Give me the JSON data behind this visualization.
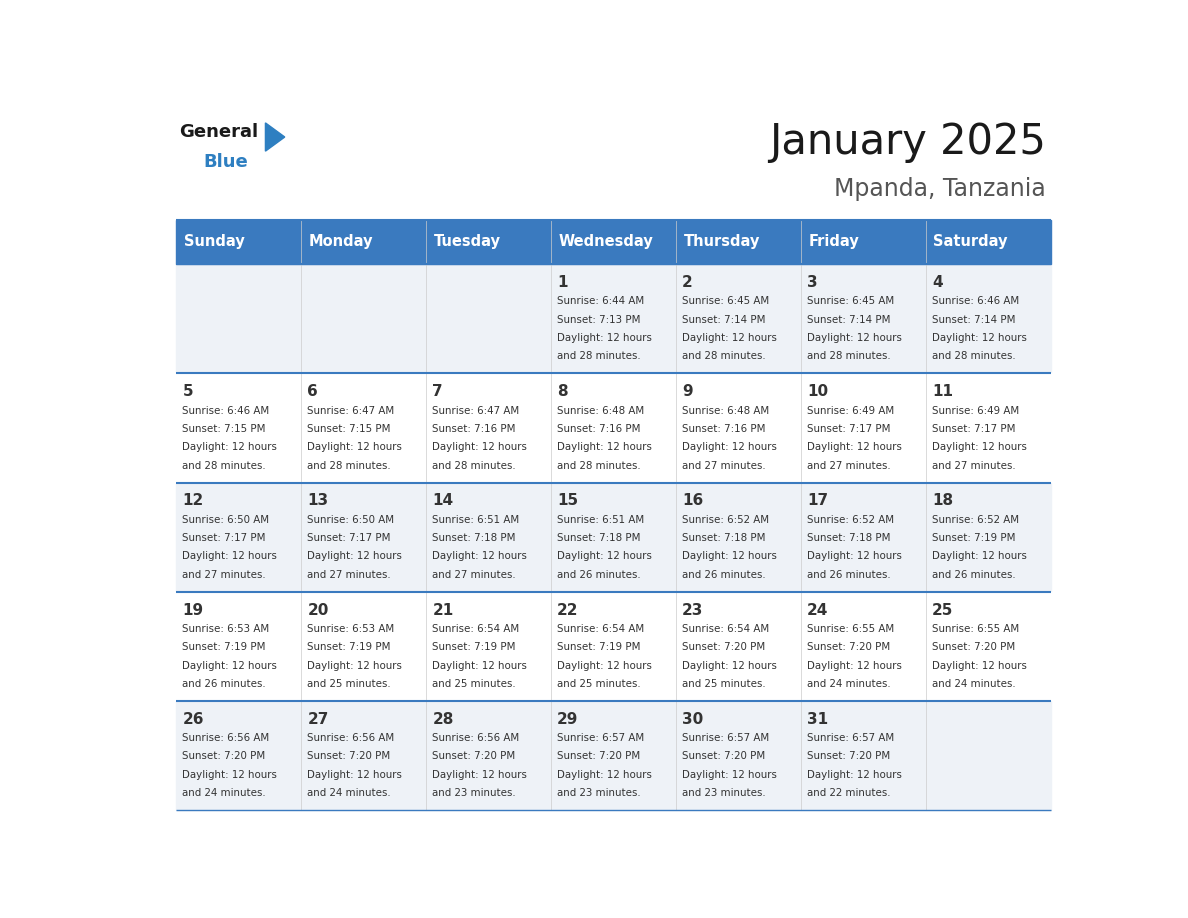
{
  "title": "January 2025",
  "subtitle": "Mpanda, Tanzania",
  "header_bg_color": "#3a7abf",
  "header_text_color": "#ffffff",
  "day_names": [
    "Sunday",
    "Monday",
    "Tuesday",
    "Wednesday",
    "Thursday",
    "Friday",
    "Saturday"
  ],
  "row_bg_even": "#eef2f7",
  "row_bg_odd": "#ffffff",
  "cell_text_color": "#333333",
  "day_num_color": "#333333",
  "divider_color": "#3a7abf",
  "logo_general_color": "#1a1a1a",
  "logo_blue_color": "#2e7fc1",
  "days": [
    {
      "day": 1,
      "col": 3,
      "row": 0,
      "sunrise": "6:44 AM",
      "sunset": "7:13 PM",
      "daylight": "12 hours and 28 minutes."
    },
    {
      "day": 2,
      "col": 4,
      "row": 0,
      "sunrise": "6:45 AM",
      "sunset": "7:14 PM",
      "daylight": "12 hours and 28 minutes."
    },
    {
      "day": 3,
      "col": 5,
      "row": 0,
      "sunrise": "6:45 AM",
      "sunset": "7:14 PM",
      "daylight": "12 hours and 28 minutes."
    },
    {
      "day": 4,
      "col": 6,
      "row": 0,
      "sunrise": "6:46 AM",
      "sunset": "7:14 PM",
      "daylight": "12 hours and 28 minutes."
    },
    {
      "day": 5,
      "col": 0,
      "row": 1,
      "sunrise": "6:46 AM",
      "sunset": "7:15 PM",
      "daylight": "12 hours and 28 minutes."
    },
    {
      "day": 6,
      "col": 1,
      "row": 1,
      "sunrise": "6:47 AM",
      "sunset": "7:15 PM",
      "daylight": "12 hours and 28 minutes."
    },
    {
      "day": 7,
      "col": 2,
      "row": 1,
      "sunrise": "6:47 AM",
      "sunset": "7:16 PM",
      "daylight": "12 hours and 28 minutes."
    },
    {
      "day": 8,
      "col": 3,
      "row": 1,
      "sunrise": "6:48 AM",
      "sunset": "7:16 PM",
      "daylight": "12 hours and 28 minutes."
    },
    {
      "day": 9,
      "col": 4,
      "row": 1,
      "sunrise": "6:48 AM",
      "sunset": "7:16 PM",
      "daylight": "12 hours and 27 minutes."
    },
    {
      "day": 10,
      "col": 5,
      "row": 1,
      "sunrise": "6:49 AM",
      "sunset": "7:17 PM",
      "daylight": "12 hours and 27 minutes."
    },
    {
      "day": 11,
      "col": 6,
      "row": 1,
      "sunrise": "6:49 AM",
      "sunset": "7:17 PM",
      "daylight": "12 hours and 27 minutes."
    },
    {
      "day": 12,
      "col": 0,
      "row": 2,
      "sunrise": "6:50 AM",
      "sunset": "7:17 PM",
      "daylight": "12 hours and 27 minutes."
    },
    {
      "day": 13,
      "col": 1,
      "row": 2,
      "sunrise": "6:50 AM",
      "sunset": "7:17 PM",
      "daylight": "12 hours and 27 minutes."
    },
    {
      "day": 14,
      "col": 2,
      "row": 2,
      "sunrise": "6:51 AM",
      "sunset": "7:18 PM",
      "daylight": "12 hours and 27 minutes."
    },
    {
      "day": 15,
      "col": 3,
      "row": 2,
      "sunrise": "6:51 AM",
      "sunset": "7:18 PM",
      "daylight": "12 hours and 26 minutes."
    },
    {
      "day": 16,
      "col": 4,
      "row": 2,
      "sunrise": "6:52 AM",
      "sunset": "7:18 PM",
      "daylight": "12 hours and 26 minutes."
    },
    {
      "day": 17,
      "col": 5,
      "row": 2,
      "sunrise": "6:52 AM",
      "sunset": "7:18 PM",
      "daylight": "12 hours and 26 minutes."
    },
    {
      "day": 18,
      "col": 6,
      "row": 2,
      "sunrise": "6:52 AM",
      "sunset": "7:19 PM",
      "daylight": "12 hours and 26 minutes."
    },
    {
      "day": 19,
      "col": 0,
      "row": 3,
      "sunrise": "6:53 AM",
      "sunset": "7:19 PM",
      "daylight": "12 hours and 26 minutes."
    },
    {
      "day": 20,
      "col": 1,
      "row": 3,
      "sunrise": "6:53 AM",
      "sunset": "7:19 PM",
      "daylight": "12 hours and 25 minutes."
    },
    {
      "day": 21,
      "col": 2,
      "row": 3,
      "sunrise": "6:54 AM",
      "sunset": "7:19 PM",
      "daylight": "12 hours and 25 minutes."
    },
    {
      "day": 22,
      "col": 3,
      "row": 3,
      "sunrise": "6:54 AM",
      "sunset": "7:19 PM",
      "daylight": "12 hours and 25 minutes."
    },
    {
      "day": 23,
      "col": 4,
      "row": 3,
      "sunrise": "6:54 AM",
      "sunset": "7:20 PM",
      "daylight": "12 hours and 25 minutes."
    },
    {
      "day": 24,
      "col": 5,
      "row": 3,
      "sunrise": "6:55 AM",
      "sunset": "7:20 PM",
      "daylight": "12 hours and 24 minutes."
    },
    {
      "day": 25,
      "col": 6,
      "row": 3,
      "sunrise": "6:55 AM",
      "sunset": "7:20 PM",
      "daylight": "12 hours and 24 minutes."
    },
    {
      "day": 26,
      "col": 0,
      "row": 4,
      "sunrise": "6:56 AM",
      "sunset": "7:20 PM",
      "daylight": "12 hours and 24 minutes."
    },
    {
      "day": 27,
      "col": 1,
      "row": 4,
      "sunrise": "6:56 AM",
      "sunset": "7:20 PM",
      "daylight": "12 hours and 24 minutes."
    },
    {
      "day": 28,
      "col": 2,
      "row": 4,
      "sunrise": "6:56 AM",
      "sunset": "7:20 PM",
      "daylight": "12 hours and 23 minutes."
    },
    {
      "day": 29,
      "col": 3,
      "row": 4,
      "sunrise": "6:57 AM",
      "sunset": "7:20 PM",
      "daylight": "12 hours and 23 minutes."
    },
    {
      "day": 30,
      "col": 4,
      "row": 4,
      "sunrise": "6:57 AM",
      "sunset": "7:20 PM",
      "daylight": "12 hours and 23 minutes."
    },
    {
      "day": 31,
      "col": 5,
      "row": 4,
      "sunrise": "6:57 AM",
      "sunset": "7:20 PM",
      "daylight": "12 hours and 22 minutes."
    }
  ]
}
